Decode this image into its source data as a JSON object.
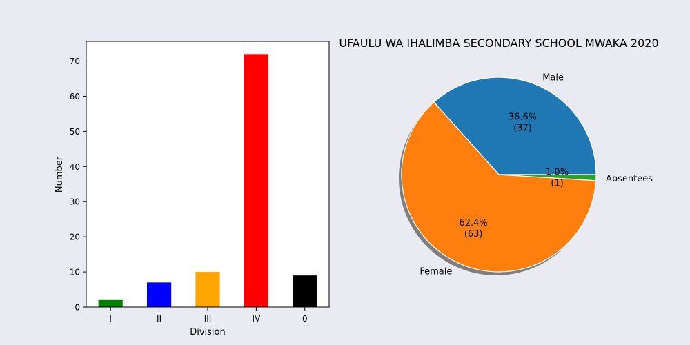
{
  "chart_data": [
    {
      "type": "bar",
      "xlabel": "Division",
      "ylabel": "Number",
      "categories": [
        "I",
        "II",
        "III",
        "IV",
        "0"
      ],
      "values": [
        2,
        7,
        10,
        72,
        9
      ],
      "colors": [
        "#008000",
        "#0000ff",
        "#ffa500",
        "#ff0000",
        "#000000"
      ],
      "ylim": [
        0,
        75.6
      ],
      "yticks": [
        0,
        10,
        20,
        30,
        40,
        50,
        60,
        70
      ],
      "grid": false
    },
    {
      "type": "pie",
      "title": "UFAULU WA IHALIMBA SECONDARY SCHOOL MWAKA 2020",
      "slices": [
        {
          "label": "Male",
          "value": 37,
          "pct_label": "36.6%",
          "count_label": "(37)",
          "color": "#1f77b4"
        },
        {
          "label": "Female",
          "value": 63,
          "pct_label": "62.4%",
          "count_label": "(63)",
          "color": "#ff7f0e"
        },
        {
          "label": "Absentees",
          "value": 1,
          "pct_label": "1.0%",
          "count_label": "(1)",
          "color": "#2ca02c"
        }
      ],
      "shadow": true
    }
  ]
}
